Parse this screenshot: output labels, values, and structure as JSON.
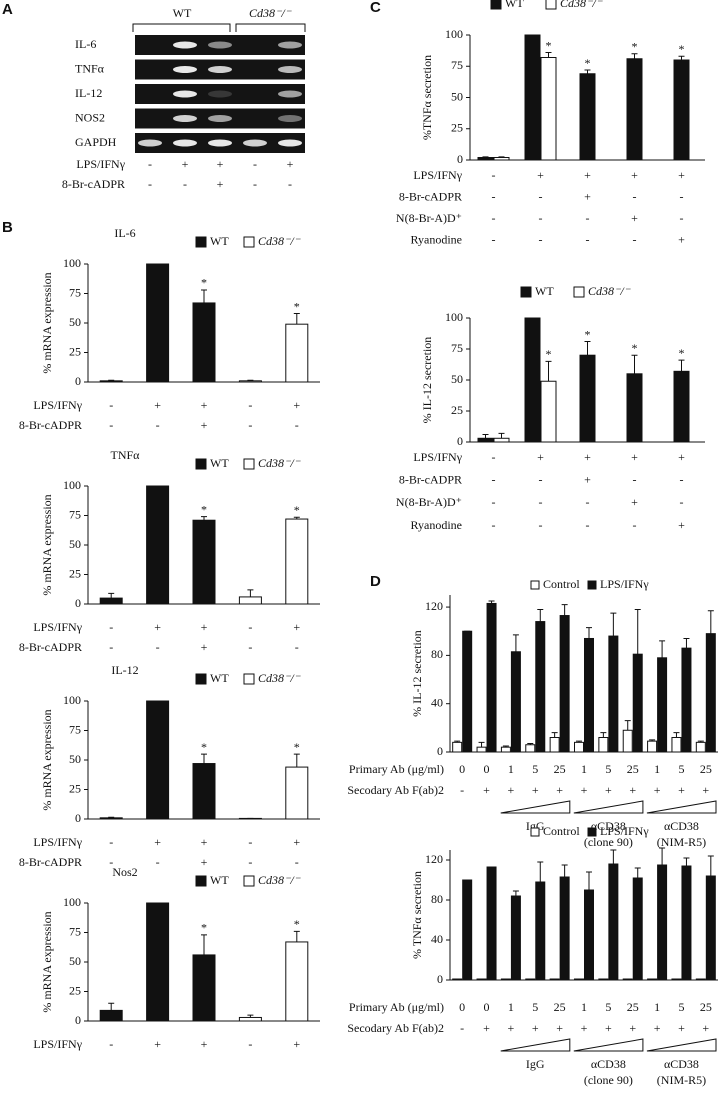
{
  "panel_labels": [
    "A",
    "B",
    "C",
    "D"
  ],
  "gel": {
    "groups": [
      "WT",
      "Cd38⁻/⁻"
    ],
    "rows": [
      "IL-6",
      "TNFα",
      "IL-12",
      "NOS2",
      "GAPDH"
    ],
    "conditions": [
      {
        "label": "LPS/IFNγ",
        "values": [
          "-",
          "+",
          "+",
          "-",
          "+"
        ]
      },
      {
        "label": "8-Br-cADPR",
        "values": [
          "-",
          "-",
          "+",
          "-",
          "-"
        ]
      }
    ]
  },
  "chart_data": [
    {
      "type": "bar",
      "title": "IL-6",
      "ylabel": "%  mRNA expression",
      "ylim": [
        0,
        100
      ],
      "yticks": [
        0,
        25,
        50,
        75,
        100
      ],
      "series": [
        {
          "name": "WT",
          "color": "#111111",
          "values": [
            1,
            100,
            67,
            null,
            null
          ],
          "errors": [
            0.5,
            0,
            11,
            null,
            null
          ],
          "significance": [
            null,
            null,
            "*",
            null,
            null
          ]
        },
        {
          "name": "Cd38⁻/⁻",
          "color": "#ffffff",
          "values": [
            null,
            null,
            null,
            1,
            49
          ],
          "errors": [
            null,
            null,
            null,
            0.5,
            9
          ],
          "significance": [
            null,
            null,
            null,
            null,
            "*"
          ]
        }
      ],
      "conditions": [
        {
          "label": "LPS/IFNγ",
          "values": [
            "-",
            "+",
            "+",
            "-",
            "+"
          ]
        },
        {
          "label": "8-Br-cADPR",
          "values": [
            "-",
            "-",
            "+",
            "-",
            "-"
          ]
        }
      ]
    },
    {
      "type": "bar",
      "title": "TNFα",
      "ylabel": "%  mRNA expression",
      "ylim": [
        0,
        100
      ],
      "yticks": [
        0,
        25,
        50,
        75,
        100
      ],
      "series": [
        {
          "name": "WT",
          "color": "#111111",
          "values": [
            5,
            100,
            71,
            null,
            null
          ],
          "errors": [
            4,
            0,
            3,
            null,
            null
          ],
          "significance": [
            null,
            null,
            "*",
            null,
            null
          ]
        },
        {
          "name": "Cd38⁻/⁻",
          "color": "#ffffff",
          "values": [
            null,
            null,
            null,
            6,
            72
          ],
          "errors": [
            null,
            null,
            null,
            6,
            1.5
          ],
          "significance": [
            null,
            null,
            null,
            null,
            "*"
          ]
        }
      ],
      "conditions": [
        {
          "label": "LPS/IFNγ",
          "values": [
            "-",
            "+",
            "+",
            "-",
            "+"
          ]
        },
        {
          "label": "8-Br-cADPR",
          "values": [
            "-",
            "-",
            "+",
            "-",
            "-"
          ]
        }
      ]
    },
    {
      "type": "bar",
      "title": "IL-12",
      "ylabel": "%  mRNA expression",
      "ylim": [
        0,
        100
      ],
      "yticks": [
        0,
        25,
        50,
        75,
        100
      ],
      "series": [
        {
          "name": "WT",
          "color": "#111111",
          "values": [
            1,
            100,
            47,
            null,
            null
          ],
          "errors": [
            0.5,
            0,
            8,
            null,
            null
          ],
          "significance": [
            null,
            null,
            "*",
            null,
            null
          ]
        },
        {
          "name": "Cd38⁻/⁻",
          "color": "#ffffff",
          "values": [
            null,
            null,
            null,
            0.5,
            44
          ],
          "errors": [
            null,
            null,
            null,
            0,
            11
          ],
          "significance": [
            null,
            null,
            null,
            null,
            "*"
          ]
        }
      ],
      "conditions": [
        {
          "label": "LPS/IFNγ",
          "values": [
            "-",
            "+",
            "+",
            "-",
            "+"
          ]
        },
        {
          "label": "8-Br-cADPR",
          "values": [
            "-",
            "-",
            "+",
            "-",
            "-"
          ]
        }
      ]
    },
    {
      "type": "bar",
      "title": "Nos2",
      "ylabel": "%  mRNA expression",
      "ylim": [
        0,
        100
      ],
      "yticks": [
        0,
        25,
        50,
        75,
        100
      ],
      "series": [
        {
          "name": "WT",
          "color": "#111111",
          "values": [
            9,
            100,
            56,
            null,
            null
          ],
          "errors": [
            6,
            0,
            17,
            null,
            null
          ],
          "significance": [
            null,
            null,
            "*",
            null,
            null
          ]
        },
        {
          "name": "Cd38⁻/⁻",
          "color": "#ffffff",
          "values": [
            null,
            null,
            null,
            3,
            67
          ],
          "errors": [
            null,
            null,
            null,
            2,
            9
          ],
          "significance": [
            null,
            null,
            null,
            null,
            "*"
          ]
        }
      ],
      "conditions": [
        {
          "label": "LPS/IFNγ",
          "values": [
            "-",
            "+",
            "+",
            "-",
            "+"
          ]
        }
      ]
    },
    {
      "type": "bar",
      "ylabel": "%TNFα secretion",
      "ylim": [
        0,
        100
      ],
      "yticks": [
        0,
        25,
        50,
        75,
        100
      ],
      "series": [
        {
          "name": "WT",
          "color": "#111111",
          "values": [
            2,
            100,
            69,
            81,
            80
          ],
          "errors": [
            0.5,
            0,
            3,
            4,
            3
          ],
          "significance": [
            null,
            null,
            "*",
            "*",
            "*"
          ]
        },
        {
          "name": "Cd38⁻/⁻",
          "color": "#ffffff",
          "values": [
            2,
            82,
            null,
            null,
            null
          ],
          "errors": [
            0.5,
            4,
            null,
            null,
            null
          ],
          "significance": [
            null,
            "*",
            null,
            null,
            null
          ]
        }
      ],
      "conditions": [
        {
          "label": "LPS/IFNγ",
          "values": [
            "-",
            "+",
            "+",
            "+",
            "+"
          ]
        },
        {
          "label": "8-Br-cADPR",
          "values": [
            "-",
            "-",
            "+",
            "-",
            "-"
          ]
        },
        {
          "label": "N(8-Br-A)D⁺",
          "values": [
            "-",
            "-",
            "-",
            "+",
            "-"
          ]
        },
        {
          "label": "Ryanodine",
          "values": [
            "-",
            "-",
            "-",
            "-",
            "+"
          ]
        }
      ]
    },
    {
      "type": "bar",
      "ylabel": "% IL-12 secretion",
      "ylim": [
        0,
        100
      ],
      "yticks": [
        0,
        25,
        50,
        75,
        100
      ],
      "series": [
        {
          "name": "WT",
          "color": "#111111",
          "values": [
            3,
            100,
            70,
            55,
            57
          ],
          "errors": [
            3,
            0,
            11,
            15,
            9
          ],
          "significance": [
            null,
            null,
            "*",
            "*",
            "*"
          ]
        },
        {
          "name": "Cd38⁻/⁻",
          "color": "#ffffff",
          "values": [
            3,
            49,
            null,
            null,
            null
          ],
          "errors": [
            4,
            16,
            null,
            null,
            null
          ],
          "significance": [
            null,
            "*",
            null,
            null,
            null
          ]
        }
      ],
      "conditions": [
        {
          "label": "LPS/IFNγ",
          "values": [
            "-",
            "+",
            "+",
            "+",
            "+"
          ]
        },
        {
          "label": "8-Br-cADPR",
          "values": [
            "-",
            "-",
            "+",
            "-",
            "-"
          ]
        },
        {
          "label": "N(8-Br-A)D⁺",
          "values": [
            "-",
            "-",
            "-",
            "+",
            "-"
          ]
        },
        {
          "label": "Ryanodine",
          "values": [
            "-",
            "-",
            "-",
            "-",
            "+"
          ]
        }
      ]
    },
    {
      "type": "bar",
      "ylabel": "% IL-12 secretion",
      "ylim": [
        0,
        130
      ],
      "yticks": [
        0,
        40,
        80,
        120
      ],
      "series": [
        {
          "name": "Control",
          "color": "#ffffff",
          "values": [
            8,
            4,
            4,
            6,
            12,
            8,
            12,
            18,
            9,
            12,
            8
          ],
          "errors": [
            1,
            4,
            1,
            1,
            4,
            1,
            4,
            8,
            1,
            4,
            1
          ]
        },
        {
          "name": "LPS/IFNγ",
          "color": "#111111",
          "values": [
            100,
            123,
            83,
            108,
            113,
            94,
            96,
            81,
            78,
            86,
            98
          ],
          "errors": [
            0,
            2,
            14,
            10,
            9,
            9,
            19,
            37,
            14,
            8,
            19
          ]
        }
      ],
      "conditions": [
        {
          "label": "Primary Ab (μg/ml)",
          "values": [
            "0",
            "0",
            "1",
            "5",
            "25",
            "1",
            "5",
            "25",
            "1",
            "5",
            "25"
          ]
        },
        {
          "label": "Secodary Ab F(ab)2",
          "values": [
            "-",
            "+",
            "+",
            "+",
            "+",
            "+",
            "+",
            "+",
            "+",
            "+",
            "+"
          ]
        }
      ],
      "groups": [
        {
          "label": "IgG"
        },
        {
          "label": "αCD38",
          "sublabel": "(clone 90)"
        },
        {
          "label": "αCD38",
          "sublabel": "(NIM-R5)"
        }
      ]
    },
    {
      "type": "bar",
      "ylabel": "% TNFα secretion",
      "ylim": [
        0,
        130
      ],
      "yticks": [
        0,
        40,
        80,
        120
      ],
      "series": [
        {
          "name": "Control",
          "color": "#ffffff",
          "values": [
            1,
            1,
            1,
            1,
            1,
            1,
            1,
            1,
            1,
            1,
            1
          ],
          "errors": [
            0,
            0,
            0,
            0,
            0,
            0,
            0,
            0,
            0,
            0,
            0
          ]
        },
        {
          "name": "LPS/IFNγ",
          "color": "#111111",
          "values": [
            100,
            113,
            84,
            98,
            103,
            90,
            116,
            102,
            115,
            114,
            104
          ],
          "errors": [
            0,
            0,
            5,
            20,
            12,
            18,
            14,
            10,
            17,
            8,
            20
          ]
        }
      ],
      "conditions": [
        {
          "label": "Primary Ab (μg/ml)",
          "values": [
            "0",
            "0",
            "1",
            "5",
            "25",
            "1",
            "5",
            "25",
            "1",
            "5",
            "25"
          ]
        },
        {
          "label": "Secodary Ab F(ab)2",
          "values": [
            "-",
            "+",
            "+",
            "+",
            "+",
            "+",
            "+",
            "+",
            "+",
            "+",
            "+"
          ]
        }
      ],
      "groups": [
        {
          "label": "IgG"
        },
        {
          "label": "αCD38",
          "sublabel": "(clone 90)"
        },
        {
          "label": "αCD38",
          "sublabel": "(NIM-R5)"
        }
      ]
    }
  ]
}
